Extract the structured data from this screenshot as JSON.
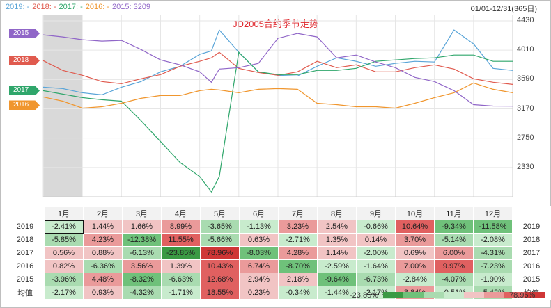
{
  "legend": [
    {
      "label": "2019: -",
      "color": "#5aa5d8"
    },
    {
      "label": "2018: -",
      "color": "#e05a4e"
    },
    {
      "label": "2017: -",
      "color": "#2fa66b"
    },
    {
      "label": "2016: -",
      "color": "#f0962e"
    },
    {
      "label": "2015: 3209",
      "color": "#9066c8"
    }
  ],
  "range_label": "01/01-12/31(365日)",
  "chart_data": {
    "type": "line",
    "title": "JD2005合约季节走势",
    "y_ticks": [
      "4430",
      "4010",
      "3590",
      "3170",
      "2750",
      "2330"
    ],
    "ylim": [
      1910,
      4430
    ],
    "x": [
      0,
      0.5,
      1,
      1.5,
      2,
      2.5,
      3,
      3.5,
      4,
      4.3,
      4.5,
      5,
      5.5,
      6,
      6.5,
      7,
      7.5,
      8,
      8.5,
      9,
      9.5,
      10,
      10.5,
      11,
      11.5,
      12
    ],
    "series": [
      {
        "name": "2019",
        "color": "#5aa5d8",
        "values": [
          3480,
          3460,
          3400,
          3370,
          3480,
          3560,
          3700,
          3780,
          3950,
          4000,
          4300,
          3980,
          3700,
          3650,
          3640,
          3780,
          3900,
          3850,
          3780,
          3820,
          3850,
          3840,
          4300,
          4100,
          3750,
          3720
        ]
      },
      {
        "name": "2018",
        "color": "#e05a4e",
        "values": [
          3860,
          3720,
          3650,
          3560,
          3530,
          3600,
          3660,
          3780,
          3850,
          3900,
          3980,
          3750,
          3690,
          3650,
          3700,
          3850,
          3760,
          3800,
          3700,
          3700,
          3760,
          3800,
          3740,
          3600,
          3550,
          3520
        ]
      },
      {
        "name": "2017",
        "color": "#2fa66b",
        "values": [
          3430,
          3380,
          3330,
          3300,
          3280,
          3000,
          2700,
          2400,
          2200,
          1980,
          2200,
          3980,
          3700,
          3660,
          3660,
          3720,
          3720,
          3750,
          3850,
          3870,
          3890,
          3900,
          3940,
          3940,
          3850,
          3850
        ]
      },
      {
        "name": "2016",
        "color": "#f0962e",
        "values": [
          3340,
          3280,
          3180,
          3200,
          3250,
          3320,
          3360,
          3360,
          3430,
          3450,
          3440,
          3400,
          3450,
          3460,
          3450,
          3250,
          3230,
          3200,
          3200,
          3180,
          3250,
          3330,
          3400,
          3540,
          3450,
          3400
        ]
      },
      {
        "name": "2015",
        "color": "#9066c8",
        "values": [
          4230,
          4200,
          4160,
          4140,
          4150,
          4020,
          3870,
          3800,
          3700,
          3550,
          3740,
          3760,
          3820,
          4180,
          4250,
          4200,
          3900,
          3940,
          3840,
          3760,
          3620,
          3560,
          3430,
          3230,
          3210,
          3209
        ]
      }
    ],
    "end_tags": [
      {
        "label": "2015",
        "value": 4250,
        "color": "#9066c8"
      },
      {
        "label": "2018",
        "value": 3860,
        "color": "#e05a4e"
      },
      {
        "label": "2017",
        "value": 3430,
        "color": "#2fa66b"
      },
      {
        "label": "2016",
        "value": 3220,
        "color": "#f0962e"
      }
    ],
    "months": [
      "1月",
      "2月",
      "3月",
      "4月",
      "5月",
      "6月",
      "7月",
      "8月",
      "9月",
      "10月",
      "11月",
      "12月"
    ],
    "table": {
      "rows": [
        {
          "year": "2019",
          "values": [
            "-2.41%",
            "1.44%",
            "1.66%",
            "8.99%",
            "-3.65%",
            "-1.13%",
            "3.23%",
            "2.54%",
            "-0.66%",
            "10.64%",
            "-9.34%",
            "-11.58%"
          ]
        },
        {
          "year": "2018",
          "values": [
            "-5.85%",
            "4.23%",
            "-12.38%",
            "11.55%",
            "-5.66%",
            "0.63%",
            "-2.71%",
            "1.35%",
            "0.14%",
            "3.70%",
            "-5.14%",
            "-2.08%"
          ]
        },
        {
          "year": "2017",
          "values": [
            "0.56%",
            "0.88%",
            "-6.13%",
            "-23.85%",
            "78.96%",
            "-8.03%",
            "4.28%",
            "1.14%",
            "-2.00%",
            "0.69%",
            "6.00%",
            "-4.31%"
          ]
        },
        {
          "year": "2016",
          "values": [
            "0.82%",
            "-6.36%",
            "3.56%",
            "1.39%",
            "10.43%",
            "6.74%",
            "-8.70%",
            "-2.59%",
            "-1.64%",
            "7.00%",
            "9.97%",
            "-7.23%"
          ]
        },
        {
          "year": "2015",
          "values": [
            "-3.96%",
            "4.48%",
            "-8.32%",
            "-6.63%",
            "12.68%",
            "2.94%",
            "2.18%",
            "-9.64%",
            "-6.73%",
            "-2.84%",
            "-4.07%",
            "-1.90%"
          ]
        },
        {
          "year": "均值",
          "values": [
            "-2.17%",
            "0.93%",
            "-4.32%",
            "-1.71%",
            "18.55%",
            "0.23%",
            "-0.34%",
            "-1.44%",
            "-2.17%",
            "3.84%",
            "-0.51%",
            "-5.42%"
          ]
        }
      ],
      "color_scale_min": "-23.85%",
      "color_scale_max": "78.96%",
      "color_scale": [
        "#3a9a44",
        "#6fc17a",
        "#a9dbb0",
        "#c8ebcd",
        "#f1c4c4",
        "#ea9a9a",
        "#e06060",
        "#cf3636"
      ]
    }
  }
}
